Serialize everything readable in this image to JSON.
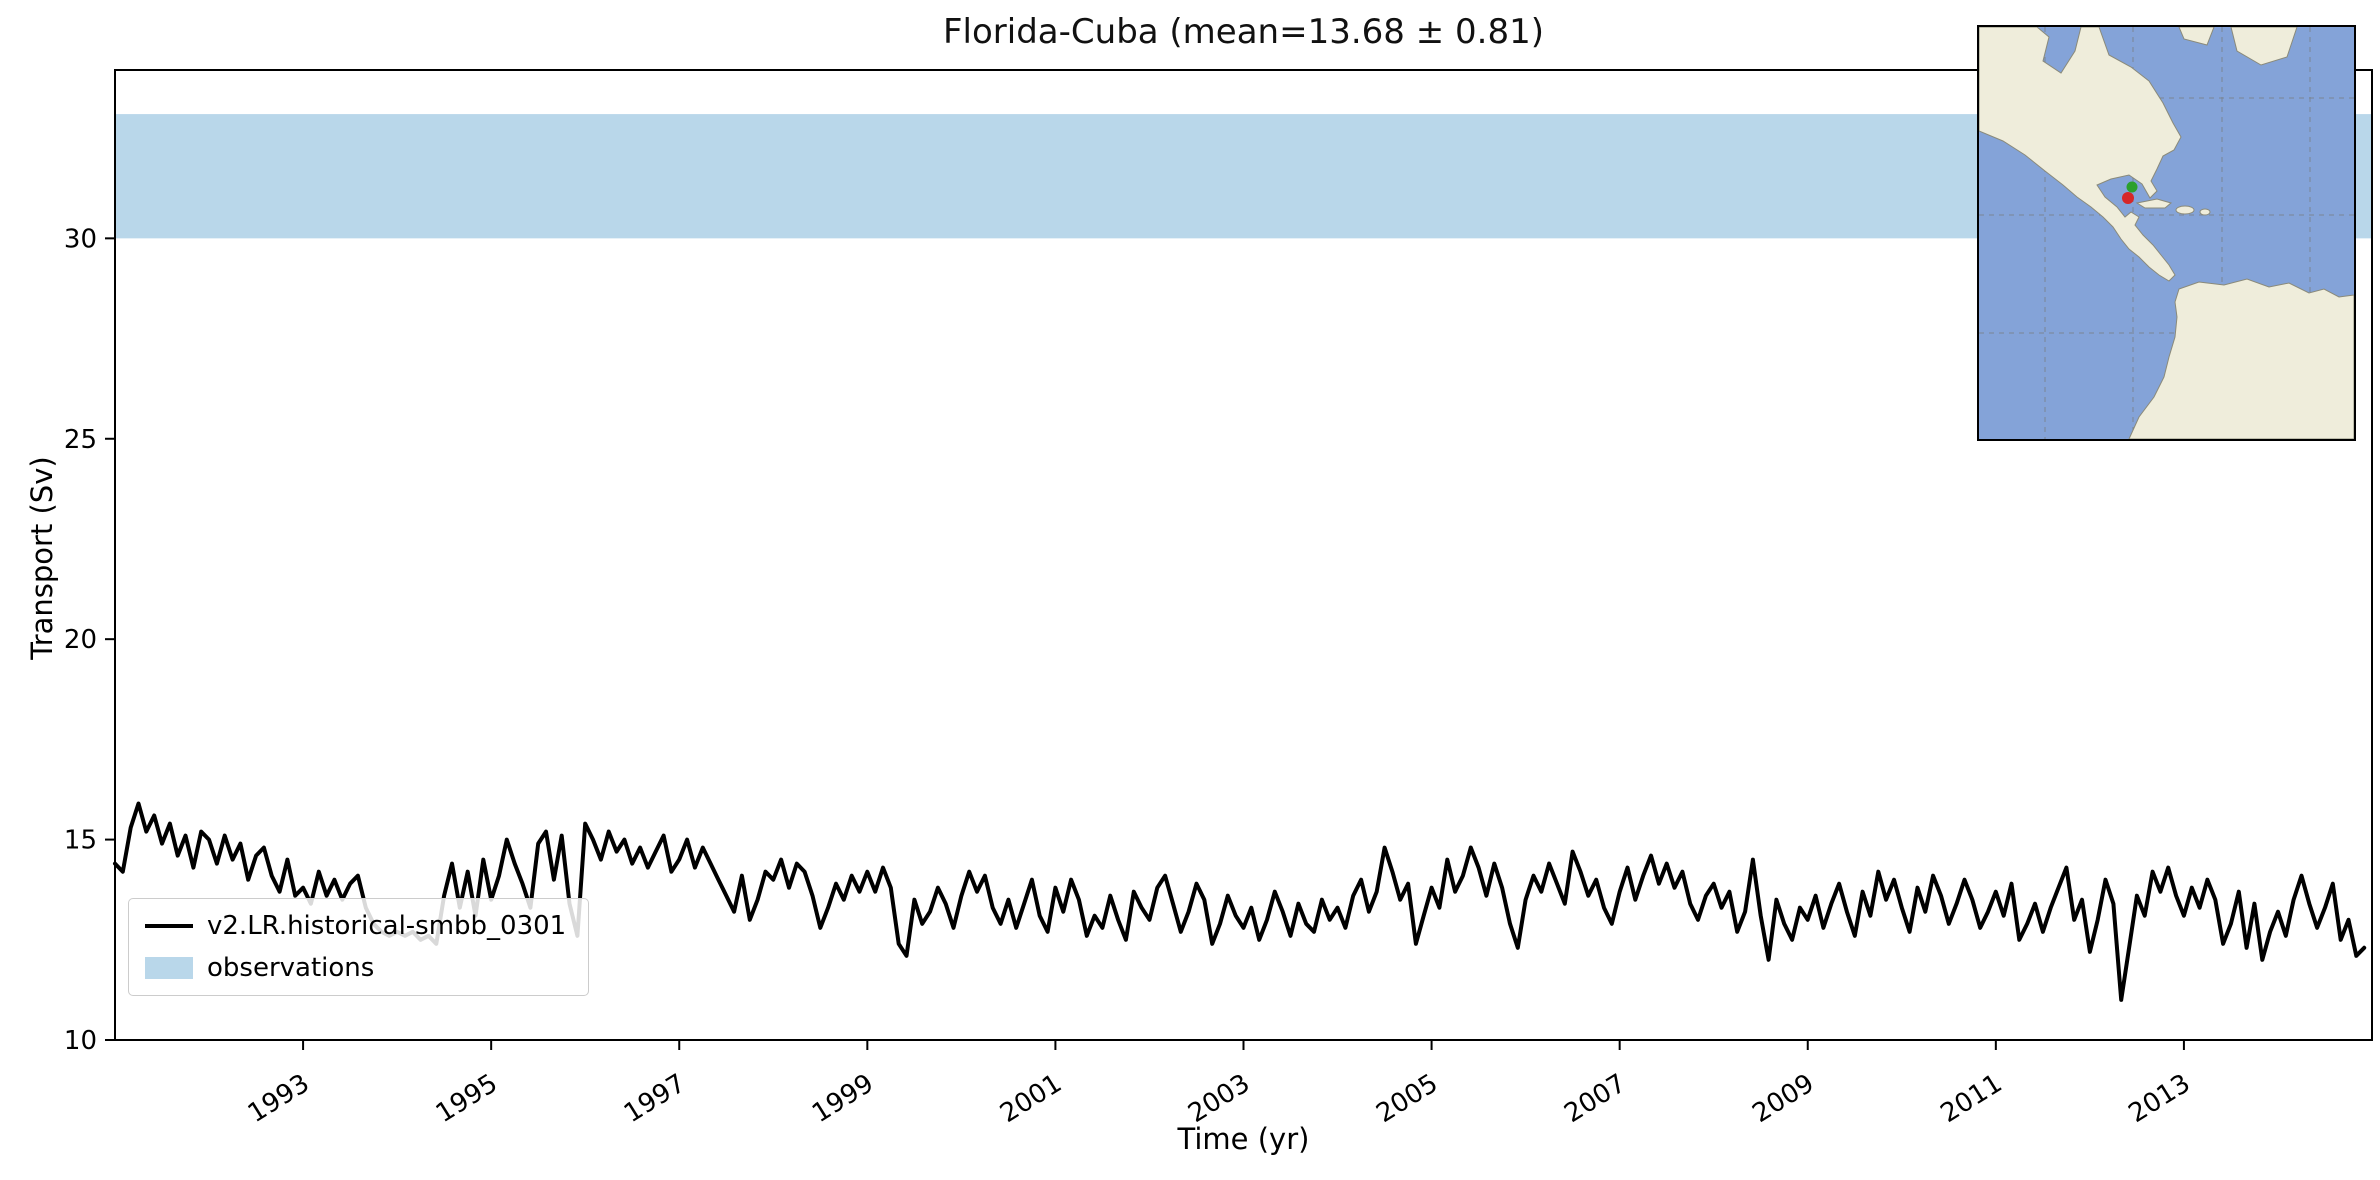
{
  "title": "Florida-Cuba (mean=13.68 ± 0.81)",
  "xlabel": "Time (yr)",
  "ylabel": "Transport (Sv)",
  "legend": {
    "series_label": "v2.LR.historical-smbb_0301",
    "band_label": "observations"
  },
  "colors": {
    "line": "#000000",
    "observations_band": "#b9d7ea",
    "map_ocean": "#84a3d8",
    "map_land": "#efeddb",
    "marker_green": "#2ca02c",
    "marker_red": "#d62728"
  },
  "chart_data": {
    "type": "line",
    "title": "Florida-Cuba (mean=13.68 ± 0.81)",
    "xlabel": "Time (yr)",
    "ylabel": "Transport (Sv)",
    "xlim": [
      1991.0,
      2015.0
    ],
    "ylim": [
      10,
      34.2
    ],
    "xticks": [
      1993,
      1995,
      1997,
      1999,
      2001,
      2003,
      2005,
      2007,
      2009,
      2011,
      2013
    ],
    "yticks": [
      10,
      15,
      20,
      25,
      30
    ],
    "grid": false,
    "legend_position": "lower left",
    "observations_band": {
      "low": 30.0,
      "high": 33.1,
      "label": "observations"
    },
    "series": [
      {
        "name": "v2.LR.historical-smbb_0301",
        "mean": 13.68,
        "std": 0.81,
        "x_start": 1991.0,
        "x_step": 0.0833333,
        "values": [
          14.4,
          14.2,
          15.3,
          15.9,
          15.2,
          15.6,
          14.9,
          15.4,
          14.6,
          15.1,
          14.3,
          15.2,
          15.0,
          14.4,
          15.1,
          14.5,
          14.9,
          14.0,
          14.6,
          14.8,
          14.1,
          13.7,
          14.5,
          13.6,
          13.8,
          13.4,
          14.2,
          13.6,
          14.0,
          13.5,
          13.9,
          14.1,
          13.3,
          12.9,
          12.7,
          12.6,
          12.7,
          12.6,
          12.7,
          12.5,
          12.6,
          12.4,
          13.6,
          14.4,
          13.3,
          14.2,
          13.1,
          14.5,
          13.5,
          14.1,
          15.0,
          14.4,
          13.9,
          13.3,
          14.9,
          15.2,
          14.0,
          15.1,
          13.4,
          12.6,
          15.4,
          15.0,
          14.5,
          15.2,
          14.7,
          15.0,
          14.4,
          14.8,
          14.3,
          14.7,
          15.1,
          14.2,
          14.5,
          15.0,
          14.3,
          14.8,
          14.4,
          14.0,
          13.6,
          13.2,
          14.1,
          13.0,
          13.5,
          14.2,
          14.0,
          14.5,
          13.8,
          14.4,
          14.2,
          13.6,
          12.8,
          13.3,
          13.9,
          13.5,
          14.1,
          13.7,
          14.2,
          13.7,
          14.3,
          13.8,
          12.4,
          12.1,
          13.5,
          12.9,
          13.2,
          13.8,
          13.4,
          12.8,
          13.6,
          14.2,
          13.7,
          14.1,
          13.3,
          12.9,
          13.5,
          12.8,
          13.4,
          14.0,
          13.1,
          12.7,
          13.8,
          13.2,
          14.0,
          13.5,
          12.6,
          13.1,
          12.8,
          13.6,
          13.0,
          12.5,
          13.7,
          13.3,
          13.0,
          13.8,
          14.1,
          13.4,
          12.7,
          13.2,
          13.9,
          13.5,
          12.4,
          12.9,
          13.6,
          13.1,
          12.8,
          13.3,
          12.5,
          13.0,
          13.7,
          13.2,
          12.6,
          13.4,
          12.9,
          12.7,
          13.5,
          13.0,
          13.3,
          12.8,
          13.6,
          14.0,
          13.2,
          13.7,
          14.8,
          14.2,
          13.5,
          13.9,
          12.4,
          13.1,
          13.8,
          13.3,
          14.5,
          13.7,
          14.1,
          14.8,
          14.3,
          13.6,
          14.4,
          13.8,
          12.9,
          12.3,
          13.5,
          14.1,
          13.7,
          14.4,
          13.9,
          13.4,
          14.7,
          14.2,
          13.6,
          14.0,
          13.3,
          12.9,
          13.7,
          14.3,
          13.5,
          14.1,
          14.6,
          13.9,
          14.4,
          13.8,
          14.2,
          13.4,
          13.0,
          13.6,
          13.9,
          13.3,
          13.7,
          12.7,
          13.2,
          14.5,
          13.1,
          12.0,
          13.5,
          12.9,
          12.5,
          13.3,
          13.0,
          13.6,
          12.8,
          13.4,
          13.9,
          13.2,
          12.6,
          13.7,
          13.1,
          14.2,
          13.5,
          14.0,
          13.3,
          12.7,
          13.8,
          13.2,
          14.1,
          13.6,
          12.9,
          13.4,
          14.0,
          13.5,
          12.8,
          13.2,
          13.7,
          13.1,
          13.9,
          12.5,
          12.9,
          13.4,
          12.7,
          13.3,
          13.8,
          14.3,
          13.0,
          13.5,
          12.2,
          13.0,
          14.0,
          13.4,
          11.0,
          12.3,
          13.6,
          13.1,
          14.2,
          13.7,
          14.3,
          13.6,
          13.1,
          13.8,
          13.3,
          14.0,
          13.5,
          12.4,
          12.9,
          13.7,
          12.3,
          13.4,
          12.0,
          12.7,
          13.2,
          12.6,
          13.5,
          14.1,
          13.4,
          12.8,
          13.3,
          13.9,
          12.5,
          13.0,
          12.1,
          12.3
        ]
      }
    ]
  },
  "inset_map": {
    "description": "regional-map",
    "markers": [
      {
        "name": "section-start",
        "color": "#2ca02c"
      },
      {
        "name": "section-end",
        "color": "#d62728"
      }
    ]
  }
}
